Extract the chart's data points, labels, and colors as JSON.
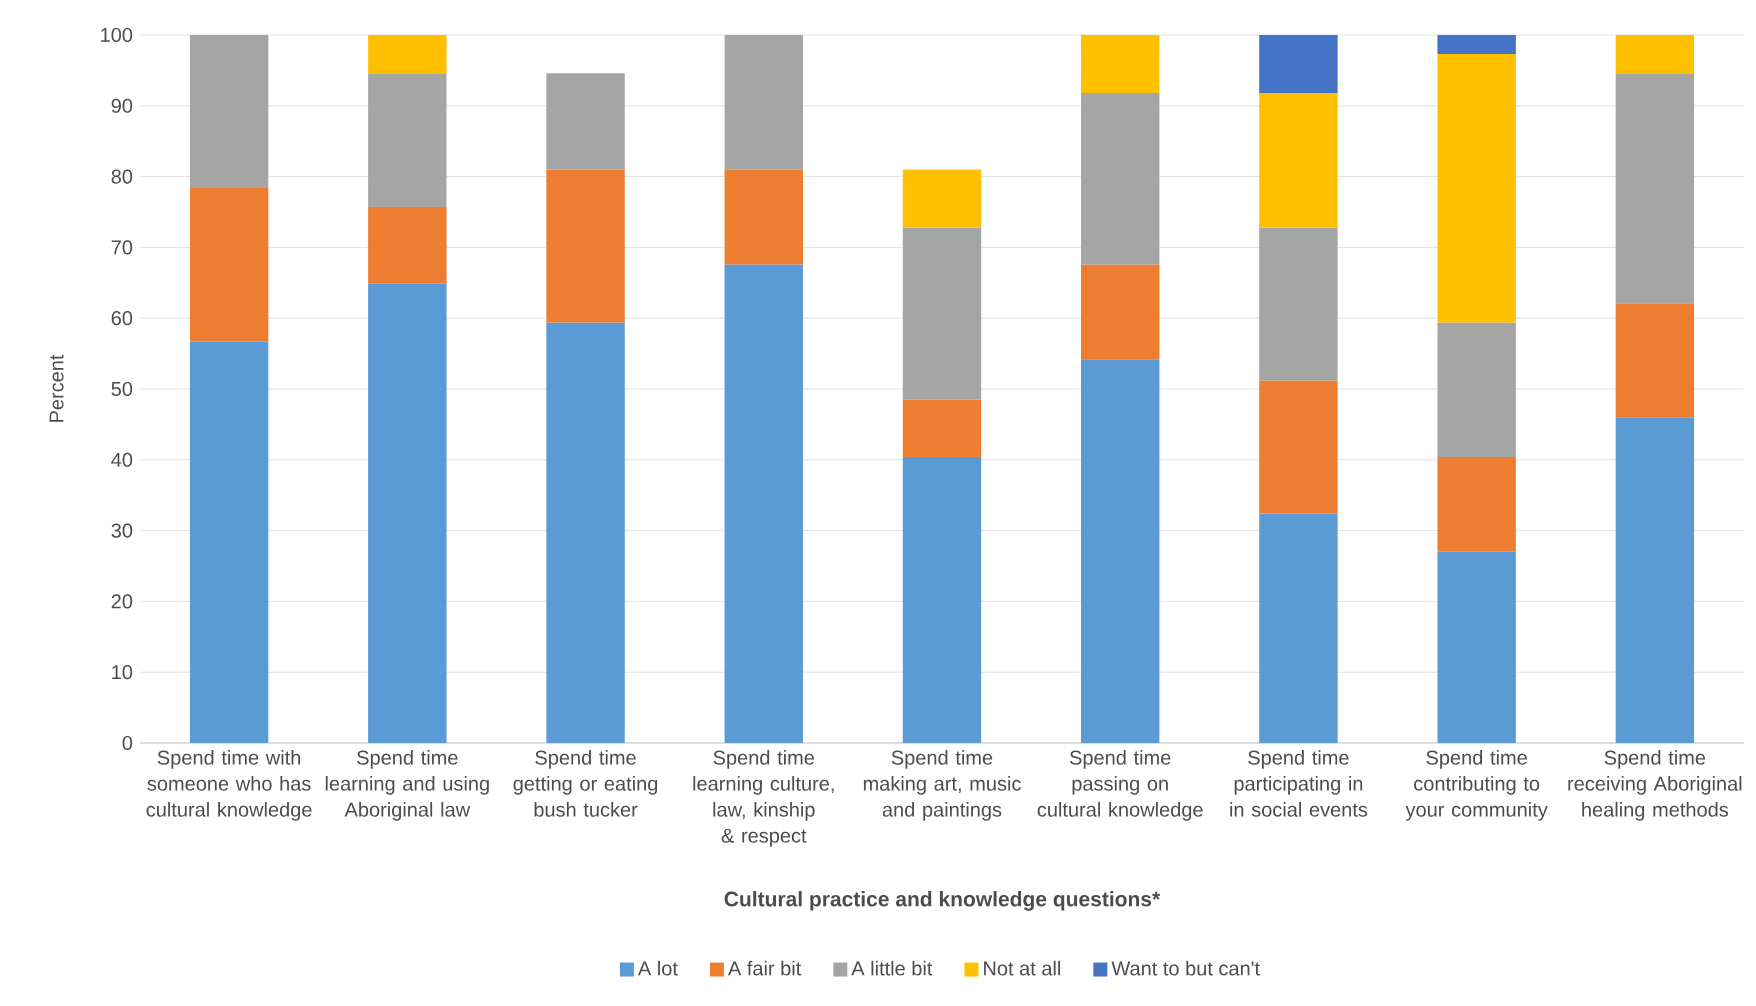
{
  "chart_data": {
    "type": "bar",
    "stacked": true,
    "xlabel": "Cultural practice and knowledge questions*",
    "ylabel": "Percent",
    "categories": [
      "Spend time with someone who has cultural knowledge",
      "Spend time learning and using Aboriginal law",
      "Spend time getting or eating bush tucker",
      "Spend time learning culture, law, kinship & respect",
      "Spend time making art, music and paintings",
      "Spend time passing on cultural knowledge",
      "Spend time participating in in social events",
      "Spend time contributing to your community",
      "Spend time receiving Aboriginal healing methods"
    ],
    "series": [
      {
        "name": "A lot",
        "color": "#5b9bd5",
        "values": [
          56.7,
          64.9,
          59.4,
          67.6,
          40.4,
          54.2,
          32.4,
          27.0,
          46.0
        ]
      },
      {
        "name": "A fair bit",
        "color": "#ed7d31",
        "values": [
          21.7,
          10.8,
          21.6,
          13.4,
          8.1,
          13.4,
          18.8,
          13.4,
          16.1
        ]
      },
      {
        "name": "A little bit",
        "color": "#a5a5a5",
        "values": [
          21.6,
          18.9,
          13.6,
          19.0,
          24.3,
          24.2,
          21.6,
          19.0,
          32.5
        ]
      },
      {
        "name": "Not at all",
        "color": "#ffc000",
        "values": [
          null,
          5.4,
          null,
          null,
          8.2,
          8.2,
          19.0,
          37.9,
          5.4
        ]
      },
      {
        "name": "Want to but can't",
        "color": "#4472c4",
        "values": [
          null,
          null,
          null,
          null,
          null,
          null,
          8.2,
          2.7,
          null
        ]
      }
    ],
    "ylim": [
      0,
      100
    ],
    "yticks": [
      0,
      10,
      20,
      30,
      40,
      50,
      60,
      70,
      80,
      90,
      100
    ],
    "grid": "y",
    "legend": "bottom"
  }
}
